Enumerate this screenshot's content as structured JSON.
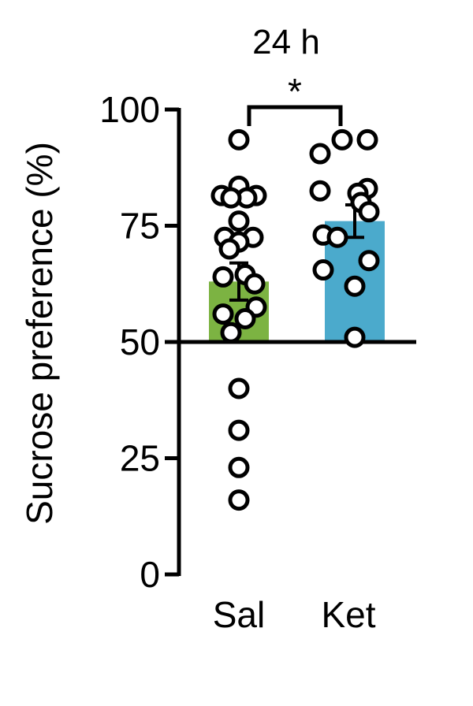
{
  "chart_data": {
    "type": "bar",
    "title": "24 h",
    "ylabel": "Sucrose preference (%)",
    "xlabel": "",
    "categories": [
      "Sal",
      "Ket"
    ],
    "ylim": [
      0,
      100
    ],
    "yticks": [
      "0",
      "25",
      "50",
      "75",
      "100"
    ],
    "baseline": 50,
    "bars": [
      {
        "category": "Sal",
        "mean": 63,
        "sem": 4,
        "color": "#7CB342"
      },
      {
        "category": "Ket",
        "mean": 76,
        "sem": 3.5,
        "color": "#4BAACC"
      }
    ],
    "points": {
      "Sal": [
        93.5,
        83.5,
        81.5,
        81.5,
        81,
        81,
        76,
        72.5,
        72.5,
        71.5,
        70,
        64.5,
        64,
        62.5,
        57.5,
        56,
        55,
        52,
        40,
        31,
        23,
        16
      ],
      "Ket": [
        93.5,
        93.5,
        90.5,
        83,
        82.5,
        82,
        80,
        78,
        73,
        72.5,
        67.5,
        65.5,
        62,
        51
      ]
    },
    "significance": {
      "pair": [
        "Sal",
        "Ket"
      ],
      "label": "*"
    }
  }
}
